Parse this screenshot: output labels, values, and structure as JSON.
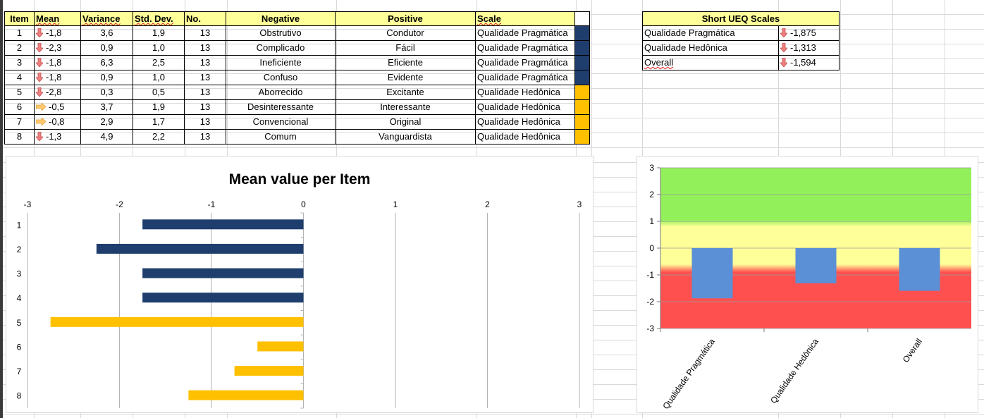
{
  "table": {
    "headers": {
      "item": "Item",
      "mean": "Mean",
      "variance": "Variance",
      "std_dev": "Std. Dev.",
      "no": "No.",
      "negative": "Negative",
      "positive": "Positive",
      "scale": "Scale"
    },
    "rows": [
      {
        "item": "1",
        "mean": "-1,8",
        "arrow": "down",
        "variance": "3,6",
        "std": "1,9",
        "no": "13",
        "negative": "Obstrutivo",
        "positive": "Condutor",
        "scale": "Qualidade Pragmática",
        "scale_color": "#1f3e6e"
      },
      {
        "item": "2",
        "mean": "-2,3",
        "arrow": "down",
        "variance": "0,9",
        "std": "1,0",
        "no": "13",
        "negative": "Complicado",
        "positive": "Fácil",
        "scale": "Qualidade Pragmática",
        "scale_color": "#1f3e6e"
      },
      {
        "item": "3",
        "mean": "-1,8",
        "arrow": "down",
        "variance": "6,3",
        "std": "2,5",
        "no": "13",
        "negative": "Ineficiente",
        "positive": "Eficiente",
        "scale": "Qualidade Pragmática",
        "scale_color": "#1f3e6e"
      },
      {
        "item": "4",
        "mean": "-1,8",
        "arrow": "down",
        "variance": "0,9",
        "std": "1,0",
        "no": "13",
        "negative": "Confuso",
        "positive": "Evidente",
        "scale": "Qualidade Pragmática",
        "scale_color": "#1f3e6e"
      },
      {
        "item": "5",
        "mean": "-2,8",
        "arrow": "down",
        "variance": "0,3",
        "std": "0,5",
        "no": "13",
        "negative": "Aborrecido",
        "positive": "Excitante",
        "scale": "Qualidade Hedônica",
        "scale_color": "#ffc000"
      },
      {
        "item": "6",
        "mean": "-0,5",
        "arrow": "right",
        "variance": "3,7",
        "std": "1,9",
        "no": "13",
        "negative": "Desinteressante",
        "positive": "Interessante",
        "scale": "Qualidade Hedônica",
        "scale_color": "#ffc000"
      },
      {
        "item": "7",
        "mean": "-0,8",
        "arrow": "right",
        "variance": "2,9",
        "std": "1,7",
        "no": "13",
        "negative": "Convencional",
        "positive": "Original",
        "scale": "Qualidade Hedônica",
        "scale_color": "#ffc000"
      },
      {
        "item": "8",
        "mean": "-1,3",
        "arrow": "down",
        "variance": "4,9",
        "std": "2,2",
        "no": "13",
        "negative": "Comum",
        "positive": "Vanguardista",
        "scale": "Qualidade Hedônica",
        "scale_color": "#ffc000"
      }
    ]
  },
  "short_scales": {
    "title": "Short UEQ Scales",
    "rows": [
      {
        "label": "Qualidade Pragmática",
        "value": "-1,875"
      },
      {
        "label": "Qualidade Hedônica",
        "value": "-1,313"
      },
      {
        "label": "Overall",
        "value": "-1,594"
      }
    ]
  },
  "colors": {
    "pragmatic": "#1f3e6e",
    "hedonic": "#ffc000",
    "header_bg": "#ffff99",
    "arrow_down": "#f08080",
    "arrow_right": "#ffc970",
    "scale_bar": "#5b8fd6",
    "band_green": "#92f05a",
    "band_yellow": "#ffff99",
    "band_red": "#ff5050"
  },
  "chart_data": [
    {
      "type": "bar",
      "orientation": "horizontal",
      "title": "Mean value per Item",
      "categories": [
        "1",
        "2",
        "3",
        "4",
        "5",
        "6",
        "7",
        "8"
      ],
      "values": [
        -1.75,
        -2.25,
        -1.75,
        -1.75,
        -2.75,
        -0.5,
        -0.75,
        -1.25
      ],
      "colors": [
        "#1f3e6e",
        "#1f3e6e",
        "#1f3e6e",
        "#1f3e6e",
        "#ffc000",
        "#ffc000",
        "#ffc000",
        "#ffc000"
      ],
      "xlim": [
        -3,
        3
      ],
      "xticks": [
        "-3",
        "-2",
        "-1",
        "0",
        "1",
        "2",
        "3"
      ],
      "grid": true
    },
    {
      "type": "bar",
      "categories": [
        "Qualidade Pragmática",
        "Qualidade Hedônica",
        "Overall"
      ],
      "values": [
        -1.875,
        -1.313,
        -1.594
      ],
      "ylim": [
        -3,
        3
      ],
      "yticks": [
        "3",
        "2",
        "1",
        "0",
        "-1",
        "-2",
        "-3"
      ],
      "background_bands": "green above 1, yellow between -0.8 and 0.8, red below -0.8",
      "grid": true
    }
  ]
}
